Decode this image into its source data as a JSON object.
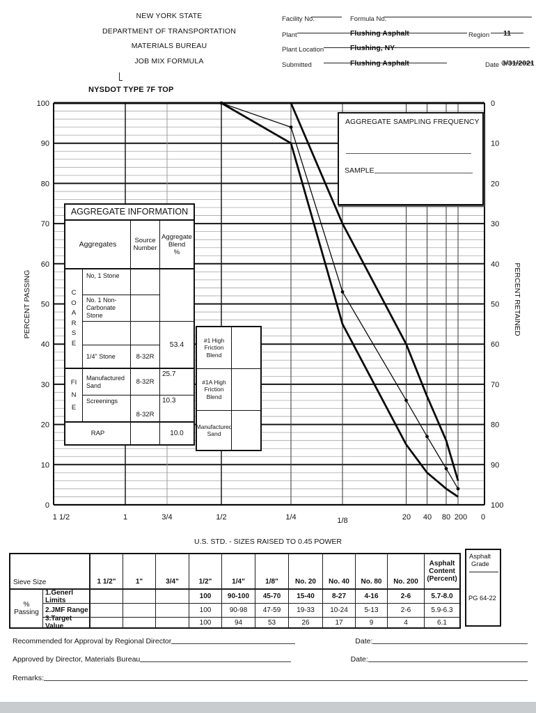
{
  "header": {
    "agency_lines": [
      "NEW YORK STATE",
      "DEPARTMENT OF TRANSPORTATION",
      "MATERIALS BUREAU",
      "JOB MIX FORMULA"
    ],
    "fields": {
      "facility_label": "Facility No.",
      "formula_label": "Formula No.",
      "plant_label": "Plant",
      "plant_value": "Flushing Asphalt",
      "region_label": "Region",
      "region_value": "11",
      "location_label": "Plant Location",
      "location_value": "Flushing, NY",
      "submitted_label": "Submitted",
      "date_label": "Date",
      "date_value": "3/31/2021",
      "submitted_value": "Flushing Asphalt"
    }
  },
  "chart": {
    "title": "NYSDOT TYPE 7F TOP",
    "y_left_title": "PERCENT PASSING",
    "y_right_title": "PERCENT RETAINED",
    "y_left_ticks": [
      "100",
      "90",
      "80",
      "70",
      "60",
      "50",
      "40",
      "30",
      "20",
      "10",
      "0"
    ],
    "y_right_ticks": [
      "0",
      "10",
      "20",
      "30",
      "40",
      "50",
      "60",
      "70",
      "80",
      "90",
      "100"
    ],
    "x_tick_labels": [
      "1 1/2",
      "1",
      "3/4",
      "1/2",
      "1/4",
      "1/8",
      "20",
      "40",
      "80",
      "200",
      "0"
    ]
  },
  "chart_data": {
    "type": "line",
    "title": "NYSDOT TYPE 7F TOP",
    "x_categories": [
      "1 1/2",
      "1",
      "3/4",
      "1/2",
      "1/4",
      "1/8",
      "No. 20",
      "No. 40",
      "No. 80",
      "No. 200"
    ],
    "x_axis_note": "U.S. STD. - SIZES RAISED TO 0.45 POWER",
    "ylabel_left": "PERCENT PASSING",
    "ylabel_right": "PERCENT RETAINED",
    "ylim": [
      0,
      100
    ],
    "grid": "on",
    "series": [
      {
        "name": "General Limits Upper",
        "style": "thick",
        "markers": false,
        "values": [
          100,
          100,
          100,
          100,
          100,
          70,
          40,
          27,
          16,
          6
        ]
      },
      {
        "name": "Target Value",
        "style": "thin",
        "markers": true,
        "values": [
          100,
          100,
          100,
          100,
          94,
          53,
          26,
          17,
          9,
          4
        ]
      },
      {
        "name": "General Limits Lower",
        "style": "thick",
        "markers": false,
        "values": [
          100,
          100,
          100,
          100,
          90,
          45,
          15,
          8,
          4,
          2
        ]
      }
    ]
  },
  "sampling_box": {
    "title": "AGGREGATE SAMPLING FREQUENCY",
    "sample_label": "SAMPLE"
  },
  "aggregate_info": {
    "title": "AGGREGATE INFORMATION",
    "col_aggregates": "Aggregates",
    "col_source": "Source\nNumber",
    "col_blend": "Aggregate\nBlend\n%",
    "coarse_label": "COARSE",
    "fine_label": "FINE",
    "rows": [
      {
        "name": "No, 1 Stone",
        "source": "",
        "blend": ""
      },
      {
        "name": "No. 1 Non-Carbonate Stone",
        "source": "",
        "blend": ""
      },
      {
        "name": "",
        "source": "",
        "blend": ""
      },
      {
        "name": "1/4\" Stone",
        "source": "8-32R",
        "blend": "53.4"
      },
      {
        "name": "Manufactured Sand",
        "source": "8-32R",
        "blend": "25.7"
      },
      {
        "name": "Screenings",
        "source": "8-32R",
        "blend": "10.3"
      },
      {
        "name": "RAP",
        "source": "",
        "blend": "10.0"
      }
    ]
  },
  "blend_boxes": {
    "rows": [
      {
        "label": "#1 High Friction Blend",
        "value": ""
      },
      {
        "label": "#1A High Friction Blend",
        "value": ""
      },
      {
        "label": "Manufactured Sand",
        "value": ""
      }
    ]
  },
  "sieve_table": {
    "caption": "U.S. STD. - SIZES RAISED TO 0.45 POWER",
    "corner_label": "Sieve Size",
    "row_group_label": "% Passing",
    "columns": [
      "1 1/2\"",
      "1\"",
      "3/4\"",
      "1/2\"",
      "1/4\"",
      "1/8\"",
      "No. 20",
      "No. 40",
      "No. 80",
      "No. 200",
      "Asphalt Content\n(Percent)"
    ],
    "rows": [
      {
        "label": "1.Generl Limits",
        "bold": true,
        "values": [
          "",
          "",
          "",
          "100",
          "90-100",
          "45-70",
          "15-40",
          "8-27",
          "4-16",
          "2-6",
          "5.7-8.0"
        ]
      },
      {
        "label": "2.JMF Range",
        "bold": false,
        "values": [
          "",
          "",
          "",
          "100",
          "90-98",
          "47-59",
          "19-33",
          "10-24",
          "5-13",
          "2-6",
          "5.9-6.3"
        ]
      },
      {
        "label": "3.Target Value",
        "bold": false,
        "values": [
          "",
          "",
          "",
          "100",
          "94",
          "53",
          "26",
          "17",
          "9",
          "4",
          "6.1"
        ]
      }
    ],
    "asphalt_grade": {
      "line1": "Asphalt",
      "line2": "Grade",
      "value": "PG  64-22"
    }
  },
  "footer": {
    "line1_label": "Recommended for Approval by Regional Director",
    "line2_label": "Approved by Director, Materials Bureau",
    "date_label": "Date:",
    "remarks_label": "Remarks:"
  }
}
